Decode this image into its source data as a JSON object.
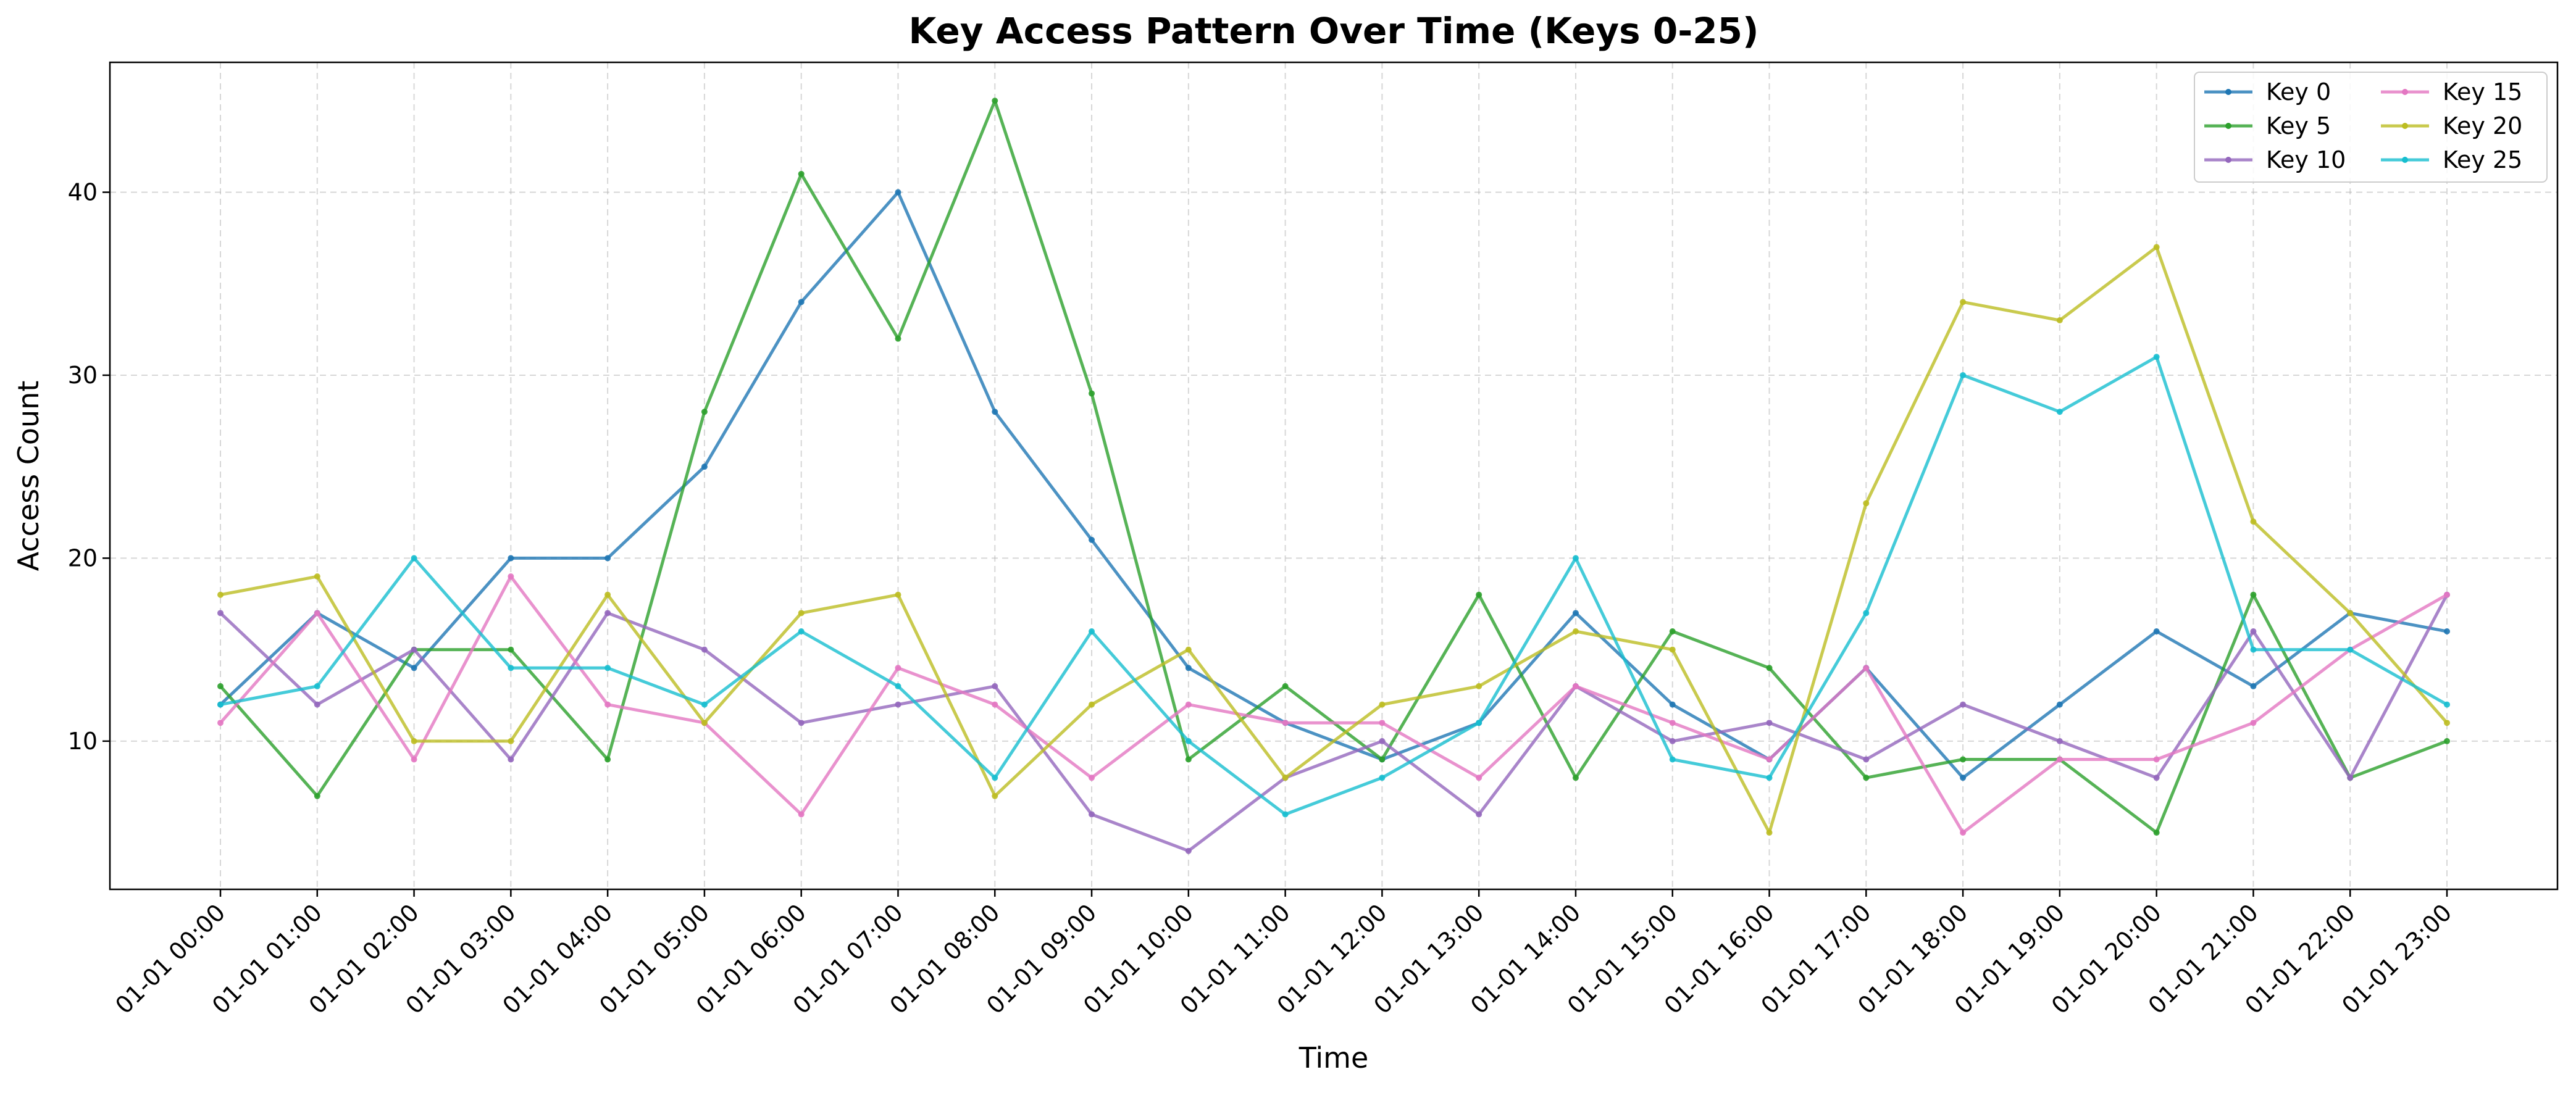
{
  "chart_data": {
    "type": "line",
    "title": "Key Access Pattern Over Time (Keys 0-25)",
    "xlabel": "Time",
    "ylabel": "Access Count",
    "categories": [
      "01-01 00:00",
      "01-01 01:00",
      "01-01 02:00",
      "01-01 03:00",
      "01-01 04:00",
      "01-01 05:00",
      "01-01 06:00",
      "01-01 07:00",
      "01-01 08:00",
      "01-01 09:00",
      "01-01 10:00",
      "01-01 11:00",
      "01-01 12:00",
      "01-01 13:00",
      "01-01 14:00",
      "01-01 15:00",
      "01-01 16:00",
      "01-01 17:00",
      "01-01 18:00",
      "01-01 19:00",
      "01-01 20:00",
      "01-01 21:00",
      "01-01 22:00",
      "01-01 23:00"
    ],
    "ylim": [
      1.9,
      47.1
    ],
    "yticks": [
      10,
      20,
      30,
      40
    ],
    "grid": true,
    "legend_position": "top-right",
    "series": [
      {
        "name": "Key 0",
        "color": "#1f77b4",
        "values": [
          12,
          17,
          14,
          20,
          20,
          25,
          34,
          40,
          28,
          21,
          14,
          11,
          9,
          11,
          17,
          12,
          9,
          14,
          8,
          12,
          16,
          13,
          17,
          16
        ]
      },
      {
        "name": "Key 5",
        "color": "#2ca02c",
        "values": [
          13,
          7,
          15,
          15,
          9,
          28,
          41,
          32,
          45,
          29,
          9,
          13,
          9,
          18,
          8,
          16,
          14,
          8,
          9,
          9,
          5,
          18,
          8,
          10
        ]
      },
      {
        "name": "Key 10",
        "color": "#9467bd",
        "values": [
          17,
          12,
          15,
          9,
          17,
          15,
          11,
          12,
          13,
          6,
          4,
          8,
          10,
          6,
          13,
          10,
          11,
          9,
          12,
          10,
          8,
          16,
          8,
          18
        ]
      },
      {
        "name": "Key 15",
        "color": "#e377c2",
        "values": [
          11,
          17,
          9,
          19,
          12,
          11,
          6,
          14,
          12,
          8,
          12,
          11,
          11,
          8,
          13,
          11,
          9,
          14,
          5,
          9,
          9,
          11,
          15,
          18
        ]
      },
      {
        "name": "Key 20",
        "color": "#bcbd22",
        "values": [
          18,
          19,
          10,
          10,
          18,
          11,
          17,
          18,
          7,
          12,
          15,
          8,
          12,
          13,
          16,
          15,
          5,
          23,
          34,
          33,
          37,
          22,
          17,
          11
        ]
      },
      {
        "name": "Key 25",
        "color": "#17becf",
        "values": [
          12,
          13,
          20,
          14,
          14,
          12,
          16,
          13,
          8,
          16,
          10,
          6,
          8,
          11,
          20,
          9,
          8,
          17,
          30,
          28,
          31,
          15,
          15,
          12
        ]
      }
    ]
  }
}
